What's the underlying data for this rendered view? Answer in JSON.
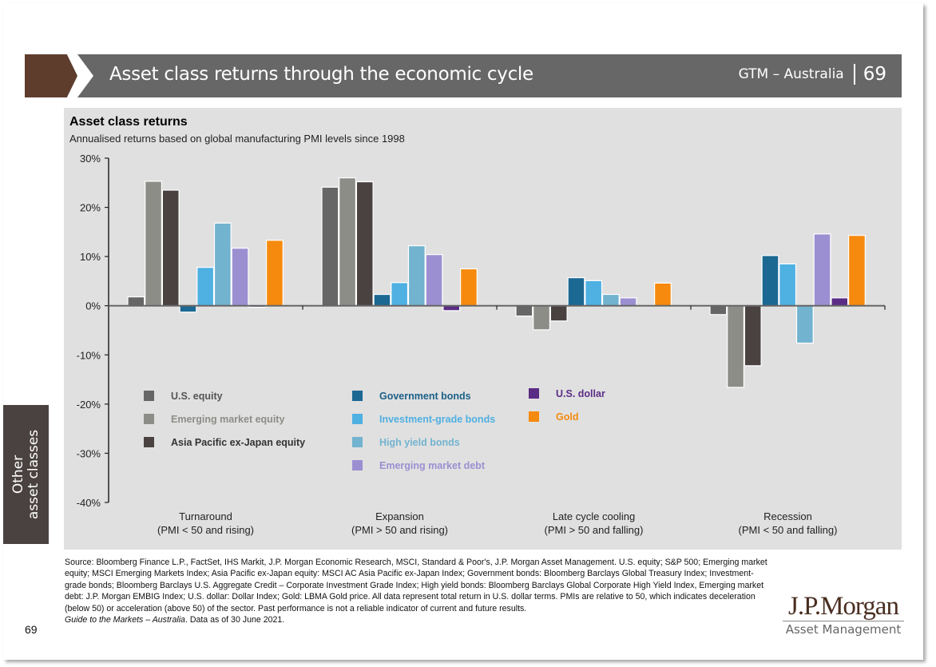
{
  "header": {
    "title": "Asset class returns through the economic cycle",
    "region": "GTM – Australia",
    "page": "69"
  },
  "side_tab": {
    "line1": "Other",
    "line2": "asset classes"
  },
  "chart_data": {
    "type": "bar",
    "title": "Asset class returns",
    "subtitle": "Annualised returns based on global manufacturing PMI levels since 1998",
    "xlabel": "",
    "ylabel": "",
    "ylim": [
      -40,
      30
    ],
    "yticks": [
      30,
      20,
      10,
      0,
      -10,
      -20,
      -30,
      -40
    ],
    "ytick_labels": [
      "30%",
      "20%",
      "10%",
      "0%",
      "-10%",
      "-20%",
      "-30%",
      "-40%"
    ],
    "grid": false,
    "legend_position": "lower-middle",
    "categories": [
      {
        "line1": "Turnaround",
        "line2": "(PMI < 50 and rising)"
      },
      {
        "line1": "Expansion",
        "line2": "(PMI > 50 and rising)"
      },
      {
        "line1": "Late cycle cooling",
        "line2": "(PMI > 50 and falling)"
      },
      {
        "line1": "Recession",
        "line2": "(PMI < 50 and falling)"
      }
    ],
    "series": [
      {
        "name": "U.S. equity",
        "color": "#666666",
        "values": [
          1.8,
          24.1,
          -2.1,
          -1.8
        ]
      },
      {
        "name": "Emerging market equity",
        "color": "#8d8d88",
        "values": [
          25.3,
          26.0,
          -4.9,
          -16.6
        ]
      },
      {
        "name": "Asia Pacific ex-Japan equity",
        "color": "#4a4241",
        "values": [
          23.5,
          25.2,
          -3.1,
          -12.2
        ]
      },
      {
        "name": "Government bonds",
        "color": "#1b6893",
        "values": [
          -1.3,
          2.3,
          5.7,
          10.2
        ]
      },
      {
        "name": "Investment-grade bonds",
        "color": "#4fb0e2",
        "values": [
          7.8,
          4.7,
          5.1,
          8.5
        ]
      },
      {
        "name": "High yield bonds",
        "color": "#72b3cf",
        "values": [
          16.8,
          12.2,
          2.3,
          -7.6
        ]
      },
      {
        "name": "Emerging market debt",
        "color": "#9c8fd1",
        "values": [
          11.7,
          10.4,
          1.6,
          14.6
        ]
      },
      {
        "name": "U.S. dollar",
        "color": "#5b2c86",
        "values": [
          -0.3,
          -1.0,
          0.0,
          1.6
        ]
      },
      {
        "name": "Gold",
        "color": "#f68a0e",
        "values": [
          13.3,
          7.5,
          4.6,
          14.3
        ]
      }
    ],
    "legend_text_colors": [
      "#555555",
      "#8d8d88",
      "#333333",
      "#1b5f87",
      "#4fb0e2",
      "#72b3cf",
      "#9c8fd1",
      "#5b2c86",
      "#f68a0e"
    ]
  },
  "footer": {
    "source": "Source: Bloomberg Finance L.P., FactSet, IHS Markit, J.P. Morgan Economic Research, MSCI, Standard & Poor's, J.P. Morgan Asset Management. U.S. equity; S&P 500; Emerging market equity; MSCI Emerging Markets Index; Asia Pacific ex-Japan equity: MSCI AC Asia Pacific ex-Japan Index; Government bonds: Bloomberg Barclays Global Treasury Index; Investment-grade bonds; Bloomberg Barclays U.S. Aggregate Credit – Corporate Investment Grade Index; High yield bonds: Bloomberg Barclays Global Corporate High Yield Index, Emerging market debt: J.P. Morgan EMBIG Index; U.S. dollar: Dollar Index; Gold: LBMA Gold price. All data represent total return in U.S. dollar terms. PMIs are relative to 50, which indicates deceleration (below 50) or acceleration (above 50) of the sector. Past performance is not a reliable indicator of current and future results.",
    "guide": "Guide to the Markets – Australia",
    "data_as_of": ". Data as of 30 June 2021.",
    "page_number": "69"
  },
  "logo": {
    "brand": "J.P.Morgan",
    "division": "Asset Management"
  }
}
